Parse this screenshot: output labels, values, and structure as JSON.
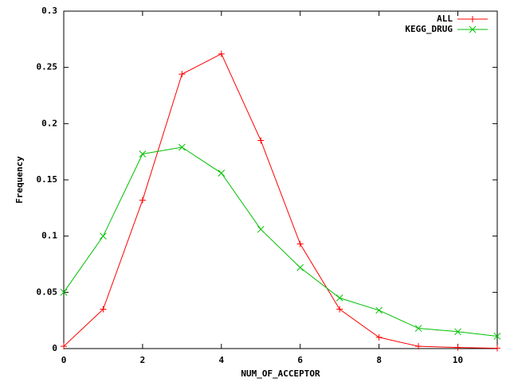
{
  "chart_data": {
    "type": "line",
    "xlabel": "NUM_OF_ACCEPTOR",
    "ylabel": "Frequency",
    "x": [
      0,
      1,
      2,
      3,
      4,
      5,
      6,
      7,
      8,
      9,
      10,
      11
    ],
    "series": [
      {
        "name": "ALL",
        "color": "#ff0000",
        "marker": "plus",
        "values": [
          0.002,
          0.035,
          0.132,
          0.244,
          0.262,
          0.185,
          0.093,
          0.035,
          0.01,
          0.002,
          0.001,
          0.0003
        ]
      },
      {
        "name": "KEGG_DRUG",
        "color": "#00c000",
        "marker": "cross",
        "values": [
          0.05,
          0.1,
          0.173,
          0.179,
          0.156,
          0.106,
          0.072,
          0.045,
          0.034,
          0.018,
          0.015,
          0.011
        ]
      }
    ],
    "xlim": [
      0,
      11
    ],
    "ylim": [
      0,
      0.3
    ],
    "xticks": [
      0,
      2,
      4,
      6,
      8,
      10
    ],
    "yticks": [
      0,
      0.05,
      0.1,
      0.15,
      0.2,
      0.25,
      0.3
    ],
    "legend": "top-right",
    "grid": false
  }
}
